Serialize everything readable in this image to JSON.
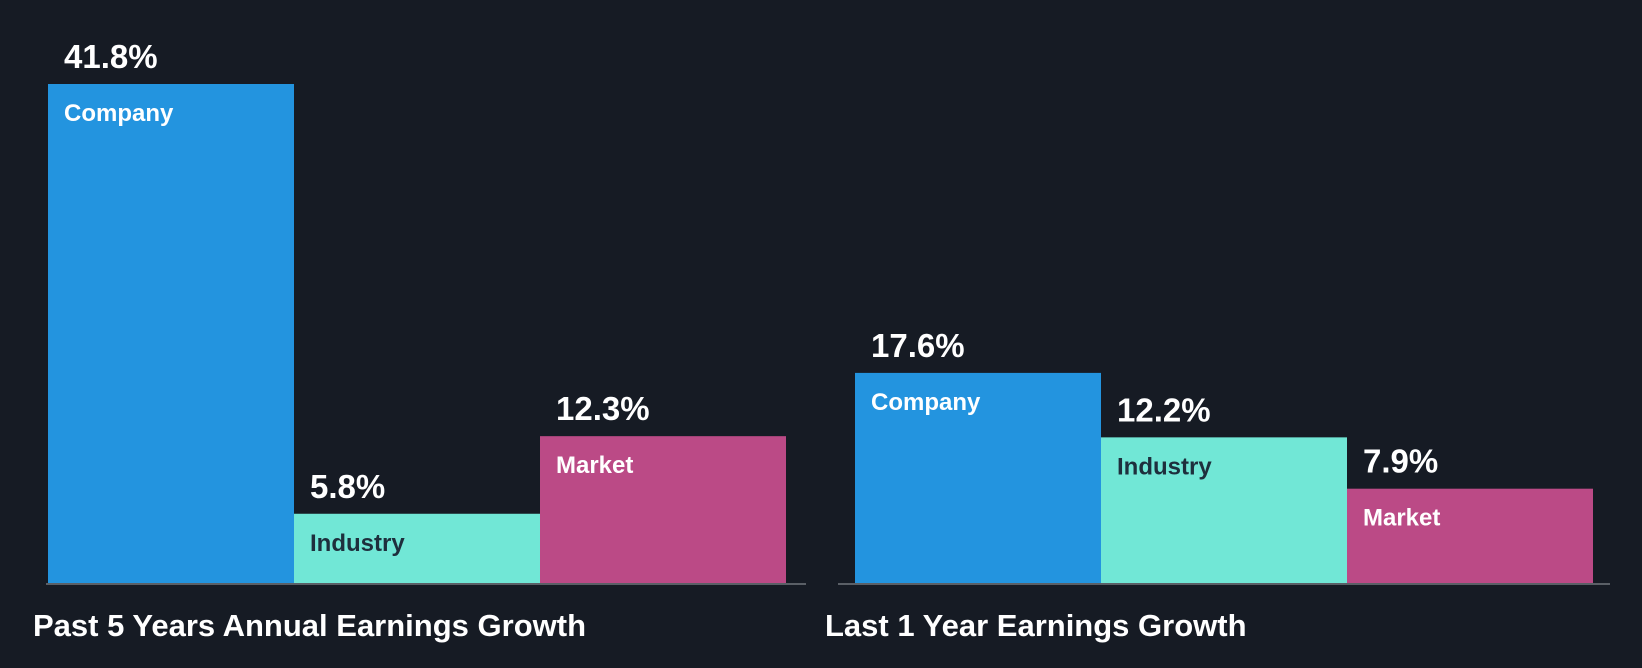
{
  "colors": {
    "background": "#161b24",
    "Company": "#2394df",
    "Industry": "#71e7d6",
    "Market": "#bb4a86",
    "baseline": "#5a5f66"
  },
  "chart_data": [
    {
      "type": "bar",
      "title": "Past 5 Years Annual Earnings Growth",
      "categories": [
        "Company",
        "Industry",
        "Market"
      ],
      "values": [
        41.8,
        5.8,
        12.3
      ],
      "value_labels": [
        "41.8%",
        "5.8%",
        "12.3%"
      ],
      "unit": "%",
      "ylim": [
        0,
        41.8
      ],
      "grid": false,
      "legend": "none"
    },
    {
      "type": "bar",
      "title": "Last 1 Year Earnings Growth",
      "categories": [
        "Company",
        "Industry",
        "Market"
      ],
      "values": [
        17.6,
        12.2,
        7.9
      ],
      "value_labels": [
        "17.6%",
        "12.2%",
        "7.9%"
      ],
      "unit": "%",
      "ylim": [
        0,
        41.8
      ],
      "grid": false,
      "legend": "none"
    }
  ]
}
